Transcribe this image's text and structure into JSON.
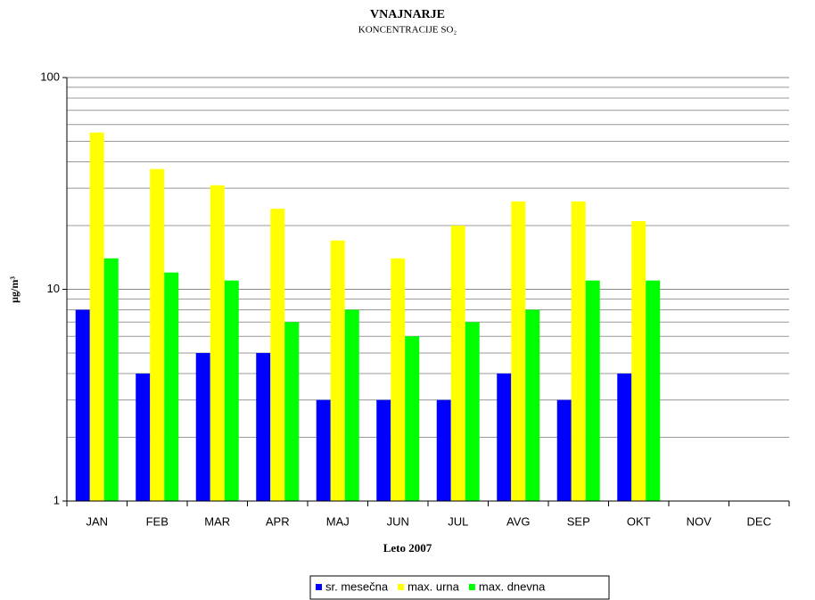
{
  "chart_data": {
    "type": "bar",
    "title": "VNAJNARJE",
    "subtitle": "KONCENTRACIJE SO₂",
    "x_label": "Leto 2007",
    "y_label": "µg/m³",
    "categories": [
      "JAN",
      "FEB",
      "MAR",
      "APR",
      "MAJ",
      "JUN",
      "JUL",
      "AVG",
      "SEP",
      "OKT",
      "NOV",
      "DEC"
    ],
    "series": [
      {
        "name": "sr. mesečna",
        "color": "#0000ff",
        "values": [
          8,
          4,
          5,
          5,
          3,
          3,
          3,
          4,
          3,
          4,
          null,
          null
        ]
      },
      {
        "name": "max. urna",
        "color": "#ffff00",
        "values": [
          55,
          37,
          31,
          24,
          17,
          14,
          20,
          26,
          26,
          21,
          null,
          null
        ]
      },
      {
        "name": "max. dnevna",
        "color": "#00ff00",
        "values": [
          14,
          12,
          11,
          7,
          8,
          6,
          7,
          8,
          11,
          11,
          null,
          null
        ]
      }
    ],
    "ylim": [
      1,
      100
    ],
    "yticks": [
      1,
      10,
      100
    ],
    "log_scale": true,
    "grid": true,
    "minor_grid": true,
    "legend": "bottom"
  }
}
